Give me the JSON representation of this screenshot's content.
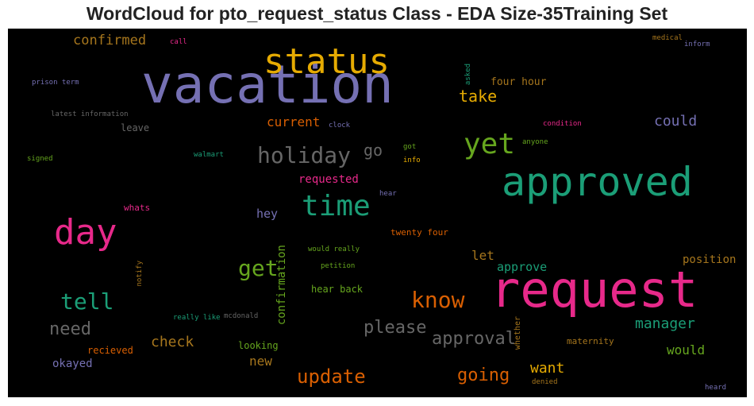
{
  "chart_data": {
    "type": "wordcloud",
    "title": "WordCloud for pto_request_status Class - EDA Size-35Training Set",
    "background": "#000000",
    "palette": "Dark2",
    "words": [
      {
        "text": "vacation",
        "color": "#7570b3"
      },
      {
        "text": "request",
        "color": "#e7298a"
      },
      {
        "text": "approved",
        "color": "#1b9e77"
      },
      {
        "text": "status",
        "color": "#e6ab02"
      },
      {
        "text": "day",
        "color": "#e7298a"
      },
      {
        "text": "time",
        "color": "#1b9e77"
      },
      {
        "text": "yet",
        "color": "#66a61e"
      },
      {
        "text": "holiday",
        "color": "#666666"
      },
      {
        "text": "know",
        "color": "#d95f02"
      },
      {
        "text": "tell",
        "color": "#1b9e77"
      },
      {
        "text": "get",
        "color": "#66a61e"
      },
      {
        "text": "update",
        "color": "#d95f02"
      },
      {
        "text": "approval",
        "color": "#666666"
      },
      {
        "text": "please",
        "color": "#666666"
      },
      {
        "text": "need",
        "color": "#666666"
      },
      {
        "text": "going",
        "color": "#d95f02"
      },
      {
        "text": "take",
        "color": "#e6ab02"
      },
      {
        "text": "go",
        "color": "#666666"
      },
      {
        "text": "manager",
        "color": "#1b9e77"
      },
      {
        "text": "could",
        "color": "#7570b3"
      },
      {
        "text": "want",
        "color": "#e6ab02"
      },
      {
        "text": "check",
        "color": "#a6761d"
      },
      {
        "text": "confirmed",
        "color": "#a6761d"
      },
      {
        "text": "current",
        "color": "#d95f02"
      },
      {
        "text": "would",
        "color": "#66a61e"
      },
      {
        "text": "new",
        "color": "#a6761d"
      },
      {
        "text": "let",
        "color": "#a6761d"
      },
      {
        "text": "hey",
        "color": "#7570b3"
      },
      {
        "text": "approve",
        "color": "#1b9e77"
      },
      {
        "text": "position",
        "color": "#a6761d"
      },
      {
        "text": "confirmation",
        "color": "#66a61e"
      },
      {
        "text": "okayed",
        "color": "#7570b3"
      },
      {
        "text": "requested",
        "color": "#e7298a"
      },
      {
        "text": "four hour",
        "color": "#a6761d"
      },
      {
        "text": "leave",
        "color": "#666666"
      },
      {
        "text": "hear back",
        "color": "#66a61e"
      },
      {
        "text": "twenty four",
        "color": "#d95f02"
      },
      {
        "text": "recieved",
        "color": "#d95f02"
      },
      {
        "text": "looking",
        "color": "#66a61e"
      },
      {
        "text": "whats",
        "color": "#e7298a"
      },
      {
        "text": "maternity",
        "color": "#a6761d"
      },
      {
        "text": "whether",
        "color": "#a6761d"
      },
      {
        "text": "asked",
        "color": "#1b9e77"
      },
      {
        "text": "prison term",
        "color": "#7570b3"
      },
      {
        "text": "latest information",
        "color": "#666666"
      },
      {
        "text": "clock",
        "color": "#7570b3"
      },
      {
        "text": "signed",
        "color": "#66a61e"
      },
      {
        "text": "walmart",
        "color": "#1b9e77"
      },
      {
        "text": "got",
        "color": "#66a61e"
      },
      {
        "text": "info",
        "color": "#e6ab02"
      },
      {
        "text": "condition",
        "color": "#e7298a"
      },
      {
        "text": "anyone",
        "color": "#66a61e"
      },
      {
        "text": "hear",
        "color": "#7570b3"
      },
      {
        "text": "would really",
        "color": "#66a61e"
      },
      {
        "text": "petition",
        "color": "#66a61e"
      },
      {
        "text": "notify",
        "color": "#a6761d"
      },
      {
        "text": "really like",
        "color": "#1b9e77"
      },
      {
        "text": "mcdonald",
        "color": "#666666"
      },
      {
        "text": "call",
        "color": "#e7298a"
      },
      {
        "text": "medical",
        "color": "#a6761d"
      },
      {
        "text": "inform",
        "color": "#7570b3"
      },
      {
        "text": "denied",
        "color": "#a6761d"
      },
      {
        "text": "heard",
        "color": "#7570b3"
      }
    ]
  }
}
